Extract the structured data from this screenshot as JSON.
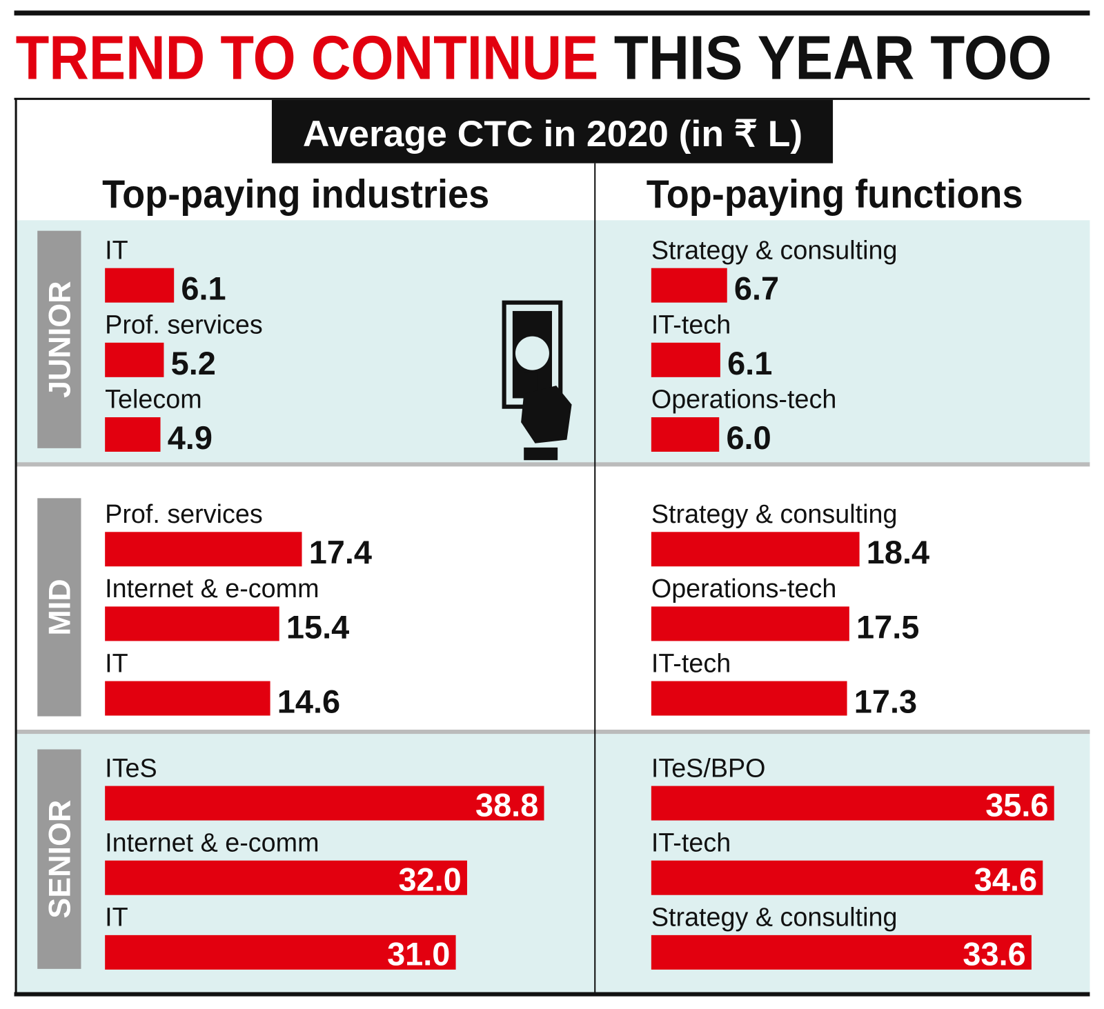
{
  "header": {
    "title_highlight": "TREND TO CONTINUE",
    "title_rest": "THIS YEAR TOO",
    "subtitle": "Average CTC in 2020 (in ₹ L)"
  },
  "columns": [
    "Top-paying industries",
    "Top-paying functions"
  ],
  "levels": [
    "JUNIOR",
    "MID",
    "SENIOR"
  ],
  "chart_data": [
    {
      "type": "bar",
      "orientation": "horizontal",
      "color": "#e2000f",
      "xlim": [
        0,
        40
      ],
      "labels_inside": false,
      "categories": [
        "IT",
        "Prof. services",
        "Telecom"
      ],
      "values": [
        6.1,
        5.2,
        4.9
      ]
    },
    {
      "type": "bar",
      "orientation": "horizontal",
      "color": "#e2000f",
      "xlim": [
        0,
        40
      ],
      "labels_inside": false,
      "categories": [
        "Strategy & consulting",
        "IT-tech",
        "Operations-tech"
      ],
      "values": [
        6.7,
        6.1,
        6
      ],
      "value_labels": [
        "6.7",
        "6.1",
        "6.0"
      ]
    },
    {
      "type": "bar",
      "orientation": "horizontal",
      "color": "#e2000f",
      "xlim": [
        0,
        40
      ],
      "labels_inside": false,
      "categories": [
        "Prof. services",
        "Internet & e-comm",
        "IT"
      ],
      "values": [
        17.4,
        15.4,
        14.6
      ]
    },
    {
      "type": "bar",
      "orientation": "horizontal",
      "color": "#e2000f",
      "xlim": [
        0,
        40
      ],
      "labels_inside": false,
      "categories": [
        "Strategy & consulting",
        "Operations-tech",
        "IT-tech"
      ],
      "values": [
        18.4,
        17.5,
        17.3
      ]
    },
    {
      "type": "bar",
      "orientation": "horizontal",
      "color": "#e2000f",
      "xlim": [
        0,
        40
      ],
      "labels_inside": true,
      "categories": [
        "ITeS",
        "Internet & e-comm",
        "IT"
      ],
      "values": [
        38.8,
        32,
        31
      ],
      "value_labels": [
        "38.8",
        "32.0",
        "31.0"
      ]
    },
    {
      "type": "bar",
      "orientation": "horizontal",
      "color": "#e2000f",
      "xlim": [
        0,
        40
      ],
      "labels_inside": true,
      "categories": [
        "ITeS/BPO",
        "IT-tech",
        "Strategy & consulting"
      ],
      "values": [
        35.6,
        34.6,
        33.6
      ]
    }
  ]
}
